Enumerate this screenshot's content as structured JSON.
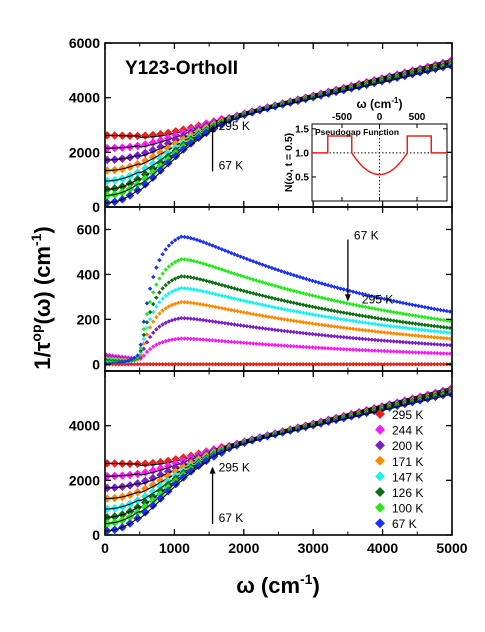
{
  "chart_data": {
    "type": "scatter",
    "title": "Y123-OrthoII",
    "ylabel_main": "1/τ",
    "ylabel_sup": "op",
    "ylabel_tail": "(ω) (cm",
    "ylabel_exp": "-1",
    "ylabel_close": ")",
    "xlabel_main": "ω (cm",
    "xlabel_exp": "-1",
    "xlabel_close": ")",
    "xlim": [
      0,
      5000
    ],
    "x_ticks": [
      0,
      1000,
      2000,
      3000,
      4000,
      5000
    ],
    "panels": [
      {
        "id": "top",
        "ylim": [
          0,
          6000
        ],
        "y_ticks": [
          0,
          2000,
          4000,
          6000
        ],
        "annotation_top": "295 K",
        "annotation_bottom": "67 K",
        "arrow": "up"
      },
      {
        "id": "middle",
        "ylim": [
          -30,
          700
        ],
        "y_ticks": [
          0,
          200,
          400,
          600
        ],
        "annotation_top": "67 K",
        "annotation_bottom": "295 K",
        "arrow": "down"
      },
      {
        "id": "bottom",
        "ylim": [
          0,
          6000
        ],
        "y_ticks": [
          0,
          2000,
          4000
        ],
        "annotation_top": "295 K",
        "annotation_bottom": "67 K",
        "arrow": "up"
      }
    ],
    "legend_placement": "bottom-right of bottom panel",
    "series": [
      {
        "name": "295 K",
        "color": "#e8231d",
        "marker": "diamond",
        "low_start": 2620,
        "high_end": 5300,
        "peak": 0
      },
      {
        "name": "244 K",
        "color": "#f21ef5",
        "marker": "diamond",
        "low_start": 2150,
        "high_end": 5400,
        "peak": 120
      },
      {
        "name": "200 K",
        "color": "#7a1fc4",
        "marker": "diamond",
        "low_start": 1720,
        "high_end": 5350,
        "peak": 215
      },
      {
        "name": "171 K",
        "color": "#ff8a00",
        "marker": "diamond",
        "low_start": 1330,
        "high_end": 5300,
        "peak": 290
      },
      {
        "name": "147 K",
        "color": "#1cf1f2",
        "marker": "diamond",
        "low_start": 950,
        "high_end": 5250,
        "peak": 355
      },
      {
        "name": "126 K",
        "color": "#0c6e12",
        "marker": "diamond",
        "low_start": 640,
        "high_end": 5250,
        "peak": 410
      },
      {
        "name": "100 K",
        "color": "#27e81f",
        "marker": "diamond",
        "low_start": 420,
        "high_end": 5200,
        "peak": 490
      },
      {
        "name": "67 K",
        "color": "#1b31f0",
        "marker": "diamond",
        "low_start": 150,
        "high_end": 5150,
        "peak": 595
      }
    ],
    "inset": {
      "title": "Pseudogap Function",
      "xlabel": "ω (cm",
      "xlabel_exp": "-1",
      "xlabel_close": ")",
      "ylabel": "N(ω, t = 0.5)",
      "xlim": [
        -900,
        900
      ],
      "ylim": [
        0,
        1.6
      ],
      "x_ticks": [
        -500,
        0,
        500
      ],
      "y_ticks": [
        0.5,
        1.0,
        1.5
      ],
      "y_tick_labels": [
        "0.5",
        "1.0",
        "1.5"
      ],
      "color": "#e8231d",
      "curve": {
        "flat": 1.0,
        "shoulder_height": 1.35,
        "shoulder_inner": 370,
        "shoulder_outer": 690,
        "min_value": 0.55
      }
    }
  }
}
